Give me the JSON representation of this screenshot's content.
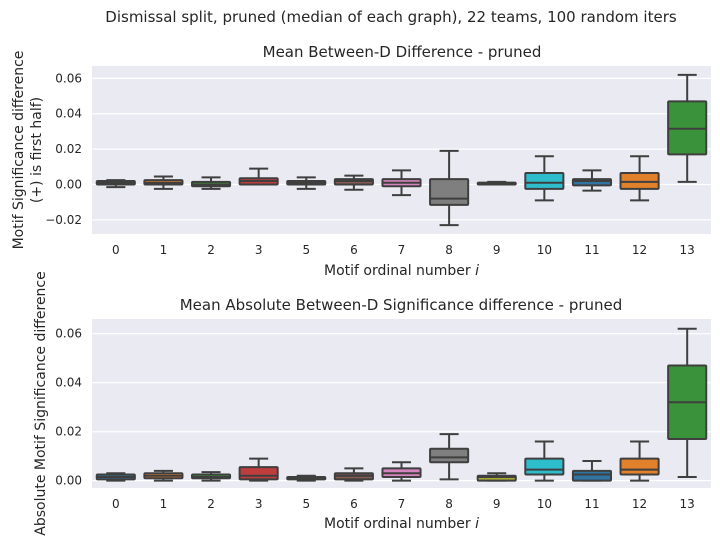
{
  "suptitle": "Dismissal split, pruned (median of each graph), 22 teams, 100 random iters",
  "palette": [
    "#3274a1",
    "#e1812c",
    "#3a923a",
    "#c03d3e",
    "#9372b2",
    "#845b53",
    "#d684bd",
    "#7f7f7f",
    "#a9aa35",
    "#2ebdcc",
    "#3274a1",
    "#e1812c",
    "#3a923a"
  ],
  "chart_data": [
    {
      "type": "box",
      "title": "Mean Between-D Difference - pruned",
      "xlabel": "Motif ordinal number ",
      "xlabel_italic": "i",
      "ylabel_lines": [
        "Motif Significance difference",
        "(+) is first half)"
      ],
      "ylim": [
        -0.028,
        0.067
      ],
      "yticks": [
        -0.02,
        0.0,
        0.02,
        0.04,
        0.06
      ],
      "ytick_labels": [
        "−0.02",
        "0.00",
        "0.02",
        "0.04",
        "0.06"
      ],
      "grid": true,
      "categories": [
        "0",
        "1",
        "2",
        "3",
        "5",
        "6",
        "7",
        "8",
        "9",
        "10",
        "11",
        "12",
        "13"
      ],
      "colors": [
        "#3274a1",
        "#e1812c",
        "#3a923a",
        "#c03d3e",
        "#9372b2",
        "#845b53",
        "#d684bd",
        "#7f7f7f",
        "#a9aa35",
        "#2ebdcc",
        "#3274a1",
        "#e1812c",
        "#3a923a"
      ],
      "boxes": [
        {
          "whislo": -0.0015,
          "q1": 0.0,
          "med": 0.001,
          "q3": 0.002,
          "whishi": 0.0025
        },
        {
          "whislo": -0.0025,
          "q1": 0.0,
          "med": 0.001,
          "q3": 0.0025,
          "whishi": 0.0045
        },
        {
          "whislo": -0.0025,
          "q1": -0.001,
          "med": 0.0,
          "q3": 0.0015,
          "whishi": 0.004
        },
        {
          "whislo": 0.0,
          "q1": 0.0,
          "med": 0.002,
          "q3": 0.0035,
          "whishi": 0.009
        },
        {
          "whislo": -0.0025,
          "q1": 0.0,
          "med": 0.001,
          "q3": 0.002,
          "whishi": 0.004
        },
        {
          "whislo": -0.003,
          "q1": 0.0,
          "med": 0.002,
          "q3": 0.003,
          "whishi": 0.005
        },
        {
          "whislo": -0.006,
          "q1": -0.001,
          "med": 0.001,
          "q3": 0.003,
          "whishi": 0.008
        },
        {
          "whislo": -0.023,
          "q1": -0.0115,
          "med": -0.008,
          "q3": 0.003,
          "whishi": 0.019
        },
        {
          "whislo": 0.0,
          "q1": 0.0,
          "med": 0.001,
          "q3": 0.001,
          "whishi": 0.0015
        },
        {
          "whislo": -0.009,
          "q1": -0.0025,
          "med": 0.001,
          "q3": 0.0065,
          "whishi": 0.016
        },
        {
          "whislo": -0.0035,
          "q1": -0.0005,
          "med": 0.002,
          "q3": 0.003,
          "whishi": 0.008
        },
        {
          "whislo": -0.009,
          "q1": -0.0025,
          "med": 0.0015,
          "q3": 0.0065,
          "whishi": 0.016
        },
        {
          "whislo": 0.0015,
          "q1": 0.017,
          "med": 0.0315,
          "q3": 0.047,
          "whishi": 0.062
        }
      ]
    },
    {
      "type": "box",
      "title": "Mean Absolute Between-D Significance difference - pruned",
      "xlabel": "Motif ordinal number ",
      "xlabel_italic": "i",
      "ylabel_lines": [
        "Absolute Motif Significance difference"
      ],
      "ylim": [
        -0.003,
        0.066
      ],
      "yticks": [
        0.0,
        0.02,
        0.04,
        0.06
      ],
      "ytick_labels": [
        "0.00",
        "0.02",
        "0.04",
        "0.06"
      ],
      "grid": true,
      "categories": [
        "0",
        "1",
        "2",
        "3",
        "5",
        "6",
        "7",
        "8",
        "9",
        "10",
        "11",
        "12",
        "13"
      ],
      "colors": [
        "#3274a1",
        "#e1812c",
        "#3a923a",
        "#c03d3e",
        "#9372b2",
        "#845b53",
        "#d684bd",
        "#7f7f7f",
        "#a9aa35",
        "#2ebdcc",
        "#3274a1",
        "#e1812c",
        "#3a923a"
      ],
      "boxes": [
        {
          "whislo": 0.0,
          "q1": 0.0005,
          "med": 0.0015,
          "q3": 0.0025,
          "whishi": 0.003
        },
        {
          "whislo": 0.0,
          "q1": 0.001,
          "med": 0.002,
          "q3": 0.003,
          "whishi": 0.004
        },
        {
          "whislo": 0.0,
          "q1": 0.001,
          "med": 0.0015,
          "q3": 0.0025,
          "whishi": 0.0035
        },
        {
          "whislo": 0.0,
          "q1": 0.0005,
          "med": 0.002,
          "q3": 0.0055,
          "whishi": 0.009
        },
        {
          "whislo": 0.0,
          "q1": 0.0005,
          "med": 0.001,
          "q3": 0.0015,
          "whishi": 0.002
        },
        {
          "whislo": 0.0,
          "q1": 0.0005,
          "med": 0.002,
          "q3": 0.003,
          "whishi": 0.005
        },
        {
          "whislo": 0.0,
          "q1": 0.0015,
          "med": 0.003,
          "q3": 0.005,
          "whishi": 0.0075
        },
        {
          "whislo": 0.0005,
          "q1": 0.0075,
          "med": 0.0095,
          "q3": 0.013,
          "whishi": 0.019
        },
        {
          "whislo": 0.0,
          "q1": 0.0,
          "med": 0.0015,
          "q3": 0.002,
          "whishi": 0.003
        },
        {
          "whislo": 0.0,
          "q1": 0.0025,
          "med": 0.0045,
          "q3": 0.009,
          "whishi": 0.016
        },
        {
          "whislo": 0.0,
          "q1": 0.0,
          "med": 0.0025,
          "q3": 0.004,
          "whishi": 0.008
        },
        {
          "whislo": 0.0,
          "q1": 0.0025,
          "med": 0.0045,
          "q3": 0.009,
          "whishi": 0.016
        },
        {
          "whislo": 0.0015,
          "q1": 0.017,
          "med": 0.032,
          "q3": 0.047,
          "whishi": 0.062
        }
      ]
    }
  ]
}
